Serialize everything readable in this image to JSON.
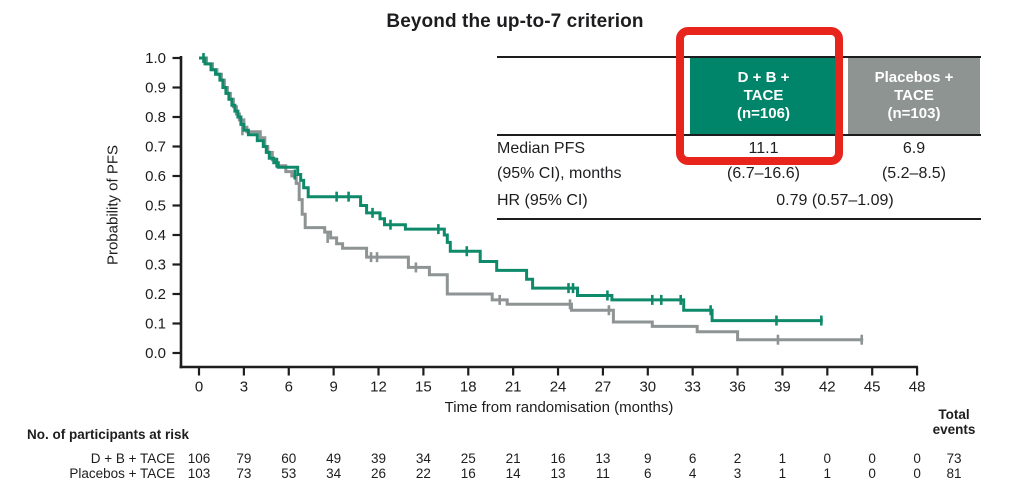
{
  "colors": {
    "teal_green": "#00846A",
    "curve_green": "#0E8A6B",
    "curve_gray": "#8E9494",
    "header_gray": "#8D9492",
    "red": "#E8251C",
    "text_black": "#1D1D1F"
  },
  "stats_table": {
    "treatment_header": {
      "line1": "D + B +",
      "line2": "TACE",
      "line3": "(n=106)"
    },
    "placebo_header": {
      "line1": "Placebos +",
      "line2": "TACE",
      "line3": "(n=103)"
    },
    "rows": [
      {
        "label": "Median PFS",
        "col1": "11.1",
        "col2": "6.9"
      },
      {
        "label": "(95% CI), months",
        "col1": "(6.7–16.6)",
        "col2": "(5.2–8.5)"
      },
      {
        "label": "HR (95% CI)",
        "merged": "0.79 (0.57–1.09)"
      }
    ]
  },
  "chart_data": {
    "type": "line",
    "subtype": "kaplan-meier-step",
    "title": "Beyond the up-to-7 criterion",
    "xlabel": "Time from randomisation (months)",
    "ylabel": "Probability of PFS",
    "xlim": [
      0,
      48
    ],
    "ylim": [
      0.0,
      1.0
    ],
    "xticks": [
      0,
      3,
      6,
      9,
      12,
      15,
      18,
      21,
      24,
      27,
      30,
      33,
      36,
      39,
      42,
      45,
      48
    ],
    "yticks": [
      0.0,
      0.1,
      0.2,
      0.3,
      0.4,
      0.5,
      0.6,
      0.7,
      0.8,
      0.9,
      1.0
    ],
    "grid": false,
    "series": [
      {
        "name": "D + B + TACE",
        "color": "#0E8A6B",
        "median_pfs_months": 11.1,
        "steps": [
          [
            0,
            1
          ],
          [
            0.4,
            0.98
          ],
          [
            0.8,
            0.96
          ],
          [
            1.1,
            0.945
          ],
          [
            1.4,
            0.925
          ],
          [
            1.6,
            0.9
          ],
          [
            1.8,
            0.88
          ],
          [
            2,
            0.86
          ],
          [
            2.2,
            0.84
          ],
          [
            2.4,
            0.82
          ],
          [
            2.6,
            0.8
          ],
          [
            2.8,
            0.775
          ],
          [
            3,
            0.755
          ],
          [
            3.3,
            0.74
          ],
          [
            3.9,
            0.72
          ],
          [
            4.3,
            0.7
          ],
          [
            4.5,
            0.68
          ],
          [
            4.7,
            0.66
          ],
          [
            5,
            0.645
          ],
          [
            5.3,
            0.63
          ],
          [
            6.6,
            0.605
          ],
          [
            6.8,
            0.585
          ],
          [
            7,
            0.56
          ],
          [
            7.3,
            0.53
          ],
          [
            10.8,
            0.5
          ],
          [
            11.2,
            0.475
          ],
          [
            12.1,
            0.455
          ],
          [
            12.4,
            0.435
          ],
          [
            13.8,
            0.42
          ],
          [
            16.4,
            0.4
          ],
          [
            16.6,
            0.375
          ],
          [
            16.8,
            0.345
          ],
          [
            18.8,
            0.31
          ],
          [
            19.9,
            0.28
          ],
          [
            21.9,
            0.25
          ],
          [
            22.3,
            0.22
          ],
          [
            25.3,
            0.195
          ],
          [
            27.6,
            0.18
          ],
          [
            32.4,
            0.145
          ],
          [
            34.3,
            0.11
          ]
        ],
        "end_t": 41.7,
        "censors": [
          [
            0.3,
            1
          ],
          [
            5.2,
            0.645
          ],
          [
            6.4,
            0.605
          ],
          [
            9.2,
            0.53
          ],
          [
            10,
            0.53
          ],
          [
            11.6,
            0.475
          ],
          [
            12.8,
            0.435
          ],
          [
            16,
            0.42
          ],
          [
            17.9,
            0.345
          ],
          [
            24.7,
            0.22
          ],
          [
            25,
            0.22
          ],
          [
            27.3,
            0.195
          ],
          [
            30.3,
            0.18
          ],
          [
            30.9,
            0.18
          ],
          [
            32.2,
            0.18
          ],
          [
            34.2,
            0.145
          ],
          [
            38.6,
            0.11
          ],
          [
            41.6,
            0.11
          ]
        ]
      },
      {
        "name": "Placebos + TACE",
        "color": "#8E9494",
        "median_pfs_months": 6.9,
        "steps": [
          [
            0,
            1
          ],
          [
            0.5,
            0.98
          ],
          [
            0.9,
            0.96
          ],
          [
            1.2,
            0.945
          ],
          [
            1.5,
            0.925
          ],
          [
            1.7,
            0.9
          ],
          [
            1.9,
            0.88
          ],
          [
            2.1,
            0.86
          ],
          [
            2.3,
            0.835
          ],
          [
            2.5,
            0.81
          ],
          [
            2.7,
            0.79
          ],
          [
            3,
            0.765
          ],
          [
            3.2,
            0.75
          ],
          [
            4.1,
            0.73
          ],
          [
            4.4,
            0.7
          ],
          [
            4.6,
            0.68
          ],
          [
            4.9,
            0.655
          ],
          [
            5.2,
            0.635
          ],
          [
            5.8,
            0.615
          ],
          [
            6.2,
            0.6
          ],
          [
            6.5,
            0.575
          ],
          [
            6.7,
            0.52
          ],
          [
            6.9,
            0.47
          ],
          [
            7.1,
            0.425
          ],
          [
            8.4,
            0.41
          ],
          [
            8.8,
            0.39
          ],
          [
            9.2,
            0.37
          ],
          [
            9.6,
            0.355
          ],
          [
            11.2,
            0.325
          ],
          [
            14,
            0.29
          ],
          [
            15.4,
            0.265
          ],
          [
            16.6,
            0.2
          ],
          [
            19.6,
            0.18
          ],
          [
            20.6,
            0.165
          ],
          [
            24.9,
            0.145
          ],
          [
            27.7,
            0.105
          ],
          [
            30.3,
            0.09
          ],
          [
            33.3,
            0.072
          ],
          [
            36,
            0.045
          ]
        ],
        "end_t": 44.4,
        "censors": [
          [
            2.9,
            0.755
          ],
          [
            8.6,
            0.39
          ],
          [
            11.5,
            0.325
          ],
          [
            11.9,
            0.325
          ],
          [
            14.5,
            0.29
          ],
          [
            20.1,
            0.18
          ],
          [
            24.8,
            0.165
          ],
          [
            27.4,
            0.145
          ],
          [
            38.7,
            0.045
          ],
          [
            44.3,
            0.045
          ]
        ]
      }
    ]
  },
  "risk_table": {
    "heading": "No. of participants at risk",
    "total_header": {
      "line1": "Total",
      "line2": "events"
    },
    "rows": [
      {
        "label": "D + B + TACE",
        "counts": [
          106,
          79,
          60,
          49,
          39,
          34,
          25,
          21,
          16,
          13,
          9,
          6,
          2,
          1,
          0,
          0,
          0
        ],
        "total": 73
      },
      {
        "label": "Placebos + TACE",
        "counts": [
          103,
          73,
          53,
          34,
          26,
          22,
          16,
          14,
          13,
          11,
          6,
          4,
          3,
          1,
          1,
          0,
          0
        ],
        "total": 81
      }
    ]
  }
}
